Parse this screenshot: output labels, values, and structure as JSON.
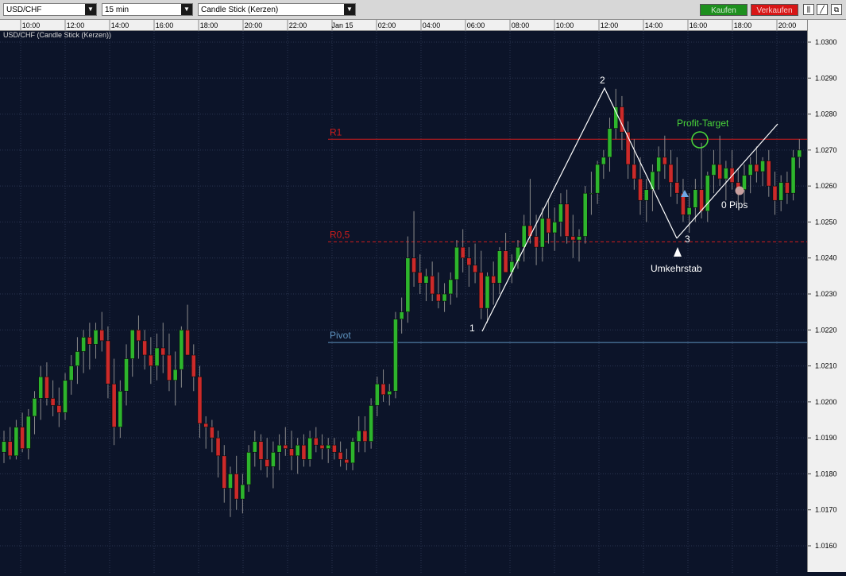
{
  "toolbar": {
    "symbol": "USD/CHF",
    "interval": "15 min",
    "chart_style": "Candle Stick (Kerzen)",
    "buy_label": "Kaufen",
    "sell_label": "Verkaufen"
  },
  "chart_caption": "USD/CHF (Candle Stick (Kerzen))",
  "colors": {
    "background": "#0c1429",
    "grid": "#2a3550",
    "bull": "#2db52d",
    "bear": "#cc2a2a",
    "r1": "#d01c1c",
    "pivot": "#5e93c0",
    "pattern": "#ffffff",
    "profit_target": "#4ad63a"
  },
  "chart_data": {
    "type": "candlestick",
    "ylim": [
      1.0155,
      1.0305
    ],
    "y_ticks": [
      "1.0160",
      "1.0170",
      "1.0180",
      "1.0190",
      "1.0200",
      "1.0210",
      "1.0220",
      "1.0230",
      "1.0240",
      "1.0250",
      "1.0260",
      "1.0270",
      "1.0280",
      "1.0290",
      "1.0300"
    ],
    "x_ticks": [
      "10:00",
      "12:00",
      "14:00",
      "16:00",
      "18:00",
      "20:00",
      "22:00",
      "Jan 15",
      "02:00",
      "04:00",
      "06:00",
      "08:00",
      "10:00",
      "12:00",
      "14:00",
      "16:00",
      "18:00",
      "20:00"
    ],
    "levels": [
      {
        "label": "R1",
        "value": 1.0273,
        "style": "solid",
        "color": "#d01c1c"
      },
      {
        "label": "R0,5",
        "value": 1.02445,
        "style": "dashed",
        "color": "#d01c1c"
      },
      {
        "label": "Pivot",
        "value": 1.02165,
        "style": "solid",
        "color": "#5e93c0"
      }
    ],
    "pattern_labels": [
      "1",
      "2",
      "3"
    ],
    "annotations": {
      "profit_target": "Profit-Target",
      "pips": "0 Pips",
      "reversal": "Umkehrstab"
    },
    "candles": [
      [
        1.0186,
        1.0192,
        1.0183,
        1.0189
      ],
      [
        1.0189,
        1.0193,
        1.0184,
        1.0185
      ],
      [
        1.0185,
        1.0195,
        1.0184,
        1.0193
      ],
      [
        1.0193,
        1.0197,
        1.0186,
        1.0187
      ],
      [
        1.0187,
        1.0198,
        1.0184,
        1.0196
      ],
      [
        1.0196,
        1.0203,
        1.0191,
        1.0201
      ],
      [
        1.0201,
        1.021,
        1.0195,
        1.0207
      ],
      [
        1.0207,
        1.0211,
        1.0199,
        1.0201
      ],
      [
        1.0201,
        1.0206,
        1.0196,
        1.0199
      ],
      [
        1.0199,
        1.0204,
        1.0193,
        1.0197
      ],
      [
        1.0197,
        1.0208,
        1.0195,
        1.0206
      ],
      [
        1.0206,
        1.0213,
        1.0202,
        1.021
      ],
      [
        1.021,
        1.0218,
        1.0205,
        1.0214
      ],
      [
        1.0214,
        1.022,
        1.0208,
        1.0218
      ],
      [
        1.0218,
        1.0222,
        1.0209,
        1.0216
      ],
      [
        1.0216,
        1.0222,
        1.0212,
        1.022
      ],
      [
        1.022,
        1.0225,
        1.0214,
        1.0217
      ],
      [
        1.0217,
        1.0221,
        1.0201,
        1.0205
      ],
      [
        1.0205,
        1.0212,
        1.0188,
        1.0193
      ],
      [
        1.0193,
        1.0206,
        1.019,
        1.0203
      ],
      [
        1.0203,
        1.0216,
        1.0199,
        1.0212
      ],
      [
        1.0212,
        1.022,
        1.0207,
        1.022
      ],
      [
        1.022,
        1.0224,
        1.0212,
        1.0217
      ],
      [
        1.0217,
        1.022,
        1.0209,
        1.0213
      ],
      [
        1.0213,
        1.0218,
        1.0205,
        1.021
      ],
      [
        1.021,
        1.0219,
        1.0206,
        1.0215
      ],
      [
        1.0215,
        1.0222,
        1.0208,
        1.0213
      ],
      [
        1.0213,
        1.0219,
        1.0203,
        1.0206
      ],
      [
        1.0206,
        1.0214,
        1.0199,
        1.0209
      ],
      [
        1.0209,
        1.0221,
        1.0204,
        1.022
      ],
      [
        1.022,
        1.0227,
        1.0214,
        1.0213
      ],
      [
        1.0213,
        1.0216,
        1.0203,
        1.0207
      ],
      [
        1.0207,
        1.021,
        1.019,
        1.0194
      ],
      [
        1.0194,
        1.0196,
        1.0187,
        1.0193
      ],
      [
        1.0193,
        1.0195,
        1.0186,
        1.019
      ],
      [
        1.019,
        1.0192,
        1.0179,
        1.0185
      ],
      [
        1.0185,
        1.0188,
        1.0172,
        1.0176
      ],
      [
        1.0176,
        1.0182,
        1.0168,
        1.018
      ],
      [
        1.018,
        1.0185,
        1.017,
        1.0173
      ],
      [
        1.0173,
        1.018,
        1.0169,
        1.0177
      ],
      [
        1.0177,
        1.0188,
        1.0175,
        1.0186
      ],
      [
        1.0186,
        1.0192,
        1.0182,
        1.0189
      ],
      [
        1.0189,
        1.0191,
        1.0181,
        1.0184
      ],
      [
        1.0184,
        1.019,
        1.0179,
        1.0182
      ],
      [
        1.0182,
        1.0189,
        1.0176,
        1.0186
      ],
      [
        1.0186,
        1.0191,
        1.0181,
        1.0188
      ],
      [
        1.0188,
        1.0193,
        1.0185,
        1.0187
      ],
      [
        1.0187,
        1.0192,
        1.0181,
        1.0185
      ],
      [
        1.0185,
        1.019,
        1.018,
        1.0188
      ],
      [
        1.0188,
        1.0191,
        1.0182,
        1.0184
      ],
      [
        1.0184,
        1.0192,
        1.0182,
        1.019
      ],
      [
        1.019,
        1.0193,
        1.0186,
        1.0188
      ],
      [
        1.0188,
        1.0191,
        1.0184,
        1.0187
      ],
      [
        1.0187,
        1.019,
        1.0183,
        1.0188
      ],
      [
        1.0188,
        1.019,
        1.0184,
        1.0186
      ],
      [
        1.0186,
        1.0189,
        1.0182,
        1.0184
      ],
      [
        1.0184,
        1.0187,
        1.0181,
        1.0183
      ],
      [
        1.0183,
        1.019,
        1.0181,
        1.0189
      ],
      [
        1.0189,
        1.0196,
        1.0186,
        1.0192
      ],
      [
        1.0192,
        1.0196,
        1.0186,
        1.0189
      ],
      [
        1.0189,
        1.0201,
        1.0187,
        1.0199
      ],
      [
        1.0199,
        1.0207,
        1.0196,
        1.0205
      ],
      [
        1.0205,
        1.0209,
        1.02,
        1.0202
      ],
      [
        1.0202,
        1.0205,
        1.0199,
        1.0203
      ],
      [
        1.0203,
        1.0225,
        1.0201,
        1.0223
      ],
      [
        1.0223,
        1.0229,
        1.0219,
        1.0225
      ],
      [
        1.0225,
        1.0246,
        1.0222,
        1.024
      ],
      [
        1.024,
        1.0253,
        1.0232,
        1.0236
      ],
      [
        1.0236,
        1.0241,
        1.023,
        1.0233
      ],
      [
        1.0233,
        1.0237,
        1.0228,
        1.0235
      ],
      [
        1.0235,
        1.0239,
        1.0228,
        1.023
      ],
      [
        1.023,
        1.0236,
        1.0226,
        1.0228
      ],
      [
        1.0228,
        1.0233,
        1.0225,
        1.023
      ],
      [
        1.023,
        1.0236,
        1.0227,
        1.0234
      ],
      [
        1.0234,
        1.0245,
        1.0229,
        1.0243
      ],
      [
        1.0243,
        1.0248,
        1.0236,
        1.024
      ],
      [
        1.024,
        1.0243,
        1.0232,
        1.0238
      ],
      [
        1.0238,
        1.0244,
        1.0233,
        1.0236
      ],
      [
        1.0236,
        1.0242,
        1.0223,
        1.0226
      ],
      [
        1.0226,
        1.0236,
        1.0222,
        1.0235
      ],
      [
        1.0235,
        1.0239,
        1.0227,
        1.0233
      ],
      [
        1.0233,
        1.0243,
        1.023,
        1.0242
      ],
      [
        1.0242,
        1.0247,
        1.0236,
        1.0236
      ],
      [
        1.0236,
        1.0241,
        1.0233,
        1.0239
      ],
      [
        1.0239,
        1.0245,
        1.0237,
        1.0243
      ],
      [
        1.0243,
        1.0252,
        1.0239,
        1.0249
      ],
      [
        1.0249,
        1.0262,
        1.0244,
        1.0246
      ],
      [
        1.0246,
        1.0252,
        1.0238,
        1.0243
      ],
      [
        1.0243,
        1.0254,
        1.0239,
        1.0251
      ],
      [
        1.0251,
        1.0256,
        1.0244,
        1.0247
      ],
      [
        1.0247,
        1.0254,
        1.0242,
        1.025
      ],
      [
        1.025,
        1.0258,
        1.0246,
        1.0255
      ],
      [
        1.0255,
        1.0259,
        1.0244,
        1.0246
      ],
      [
        1.0246,
        1.0252,
        1.024,
        1.0245
      ],
      [
        1.0245,
        1.0248,
        1.0239,
        1.0246
      ],
      [
        1.0246,
        1.026,
        1.0244,
        1.0258
      ],
      [
        1.0258,
        1.0264,
        1.0252,
        1.0258
      ],
      [
        1.0258,
        1.0267,
        1.0255,
        1.0266
      ],
      [
        1.0266,
        1.027,
        1.0262,
        1.0268
      ],
      [
        1.0268,
        1.0279,
        1.0264,
        1.0276
      ],
      [
        1.0276,
        1.0287,
        1.0273,
        1.0282
      ],
      [
        1.0282,
        1.0285,
        1.027,
        1.0275
      ],
      [
        1.0275,
        1.0278,
        1.0262,
        1.0266
      ],
      [
        1.0266,
        1.0273,
        1.0259,
        1.0262
      ],
      [
        1.0262,
        1.0268,
        1.0252,
        1.0256
      ],
      [
        1.0256,
        1.0262,
        1.025,
        1.0259
      ],
      [
        1.0259,
        1.0266,
        1.0253,
        1.0264
      ],
      [
        1.0264,
        1.0271,
        1.0259,
        1.0268
      ],
      [
        1.0268,
        1.0274,
        1.0262,
        1.0266
      ],
      [
        1.0266,
        1.027,
        1.0257,
        1.0261
      ],
      [
        1.0261,
        1.0268,
        1.0255,
        1.0258
      ],
      [
        1.0258,
        1.0262,
        1.025,
        1.0252
      ],
      [
        1.0252,
        1.0258,
        1.0247,
        1.0254
      ],
      [
        1.0254,
        1.0262,
        1.025,
        1.0259
      ],
      [
        1.0259,
        1.0272,
        1.0251,
        1.0253
      ],
      [
        1.0253,
        1.0264,
        1.025,
        1.0263
      ],
      [
        1.0263,
        1.027,
        1.0258,
        1.0266
      ],
      [
        1.0266,
        1.0274,
        1.026,
        1.0262
      ],
      [
        1.0262,
        1.0267,
        1.0256,
        1.0265
      ],
      [
        1.0265,
        1.027,
        1.0259,
        1.0261
      ],
      [
        1.0261,
        1.0265,
        1.0255,
        1.0259
      ],
      [
        1.0259,
        1.0266,
        1.0255,
        1.0263
      ],
      [
        1.0263,
        1.0268,
        1.0258,
        1.0266
      ],
      [
        1.0266,
        1.0271,
        1.0261,
        1.0264
      ],
      [
        1.0264,
        1.0268,
        1.026,
        1.0267
      ],
      [
        1.0267,
        1.027,
        1.0257,
        1.026
      ],
      [
        1.026,
        1.0264,
        1.0252,
        1.0256
      ],
      [
        1.0256,
        1.0263,
        1.0253,
        1.0261
      ],
      [
        1.0261,
        1.0264,
        1.0255,
        1.0258
      ],
      [
        1.0258,
        1.027,
        1.0256,
        1.0268
      ],
      [
        1.0268,
        1.0273,
        1.0265,
        1.027
      ]
    ]
  }
}
